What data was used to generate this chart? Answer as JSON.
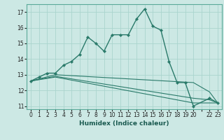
{
  "xlabel": "Humidex (Indice chaleur)",
  "ylabel": "",
  "bg_color": "#cce8e4",
  "grid_color": "#aad4ce",
  "line_color": "#2a7a6a",
  "xlim": [
    -0.5,
    23.5
  ],
  "ylim": [
    10.8,
    17.5
  ],
  "yticks": [
    11,
    12,
    13,
    14,
    15,
    16,
    17
  ],
  "xtick_positions": [
    0,
    1,
    2,
    3,
    4,
    5,
    6,
    7,
    8,
    9,
    10,
    11,
    12,
    13,
    14,
    15,
    16,
    17,
    18,
    19,
    20,
    21,
    22,
    23
  ],
  "xtick_labels": [
    "0",
    "1",
    "2",
    "3",
    "4",
    "5",
    "6",
    "7",
    "8",
    "9",
    "10",
    "11",
    "12",
    "13",
    "14",
    "15",
    "16",
    "17",
    "18",
    "19",
    "20",
    "",
    "22",
    "23"
  ],
  "series": [
    {
      "x": [
        0,
        1,
        2,
        3,
        4,
        5,
        6,
        7,
        8,
        9,
        10,
        11,
        12,
        13,
        14,
        15,
        16,
        17,
        18,
        19,
        20,
        22,
        23
      ],
      "y": [
        12.6,
        12.85,
        13.1,
        13.1,
        13.6,
        13.85,
        14.3,
        15.4,
        15.0,
        14.5,
        15.55,
        15.55,
        15.55,
        16.55,
        17.2,
        16.1,
        15.85,
        13.85,
        12.5,
        12.5,
        11.0,
        11.5,
        11.2
      ],
      "marker": true,
      "lw": 1.0
    },
    {
      "x": [
        0,
        3,
        20,
        22,
        23
      ],
      "y": [
        12.6,
        13.0,
        12.5,
        11.9,
        11.2
      ],
      "marker": false,
      "lw": 0.8
    },
    {
      "x": [
        0,
        3,
        20,
        22,
        23
      ],
      "y": [
        12.6,
        12.9,
        11.5,
        11.4,
        11.2
      ],
      "marker": false,
      "lw": 0.8
    },
    {
      "x": [
        0,
        3,
        20,
        22,
        23
      ],
      "y": [
        12.6,
        12.85,
        11.2,
        11.2,
        11.2
      ],
      "marker": false,
      "lw": 0.8
    }
  ]
}
